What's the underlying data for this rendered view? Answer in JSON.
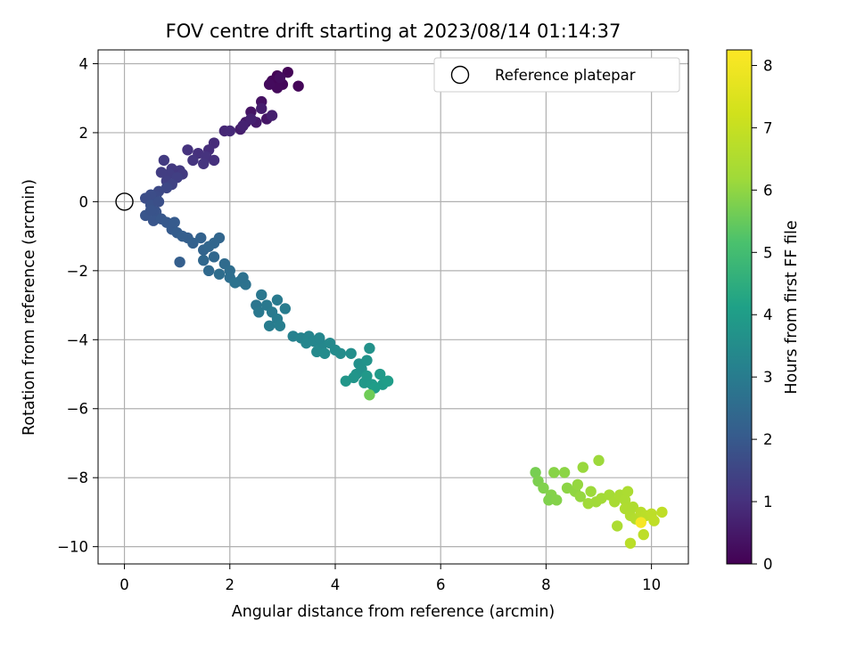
{
  "chart_data": {
    "type": "scatter",
    "title": "FOV centre drift starting at 2023/08/14 01:14:37",
    "xlabel": "Angular distance from reference (arcmin)",
    "ylabel": "Rotation from reference (arcmin)",
    "xlim": [
      -0.5,
      10.7
    ],
    "ylim": [
      -10.5,
      4.4
    ],
    "xticks": [
      "0",
      "2",
      "4",
      "6",
      "8",
      "10"
    ],
    "yticks": [
      "4",
      "2",
      "0",
      "−2",
      "−4",
      "−6",
      "−8",
      "−10"
    ],
    "grid": true,
    "legend_position": "top-right",
    "legend_label": "Reference platepar",
    "reference_point": [
      0,
      0
    ],
    "colorbar": {
      "label": "Hours from first FF file",
      "range": [
        0,
        8.25
      ],
      "ticks": [
        "0",
        "1",
        "2",
        "3",
        "4",
        "5",
        "6",
        "7",
        "8"
      ],
      "colormap": "viridis"
    },
    "points": [
      [
        2.9,
        3.65,
        0.05
      ],
      [
        3.1,
        3.75,
        0.08
      ],
      [
        3.3,
        3.35,
        0.1
      ],
      [
        2.8,
        3.5,
        0.12
      ],
      [
        3.0,
        3.4,
        0.15
      ],
      [
        2.9,
        3.3,
        0.18
      ],
      [
        2.75,
        3.4,
        0.22
      ],
      [
        2.95,
        3.6,
        0.25
      ],
      [
        2.6,
        2.9,
        0.35
      ],
      [
        2.4,
        2.6,
        0.4
      ],
      [
        2.7,
        2.4,
        0.45
      ],
      [
        2.3,
        2.3,
        0.5
      ],
      [
        2.5,
        2.3,
        0.55
      ],
      [
        2.2,
        2.1,
        0.6
      ],
      [
        2.6,
        2.7,
        0.62
      ],
      [
        2.8,
        2.5,
        0.65
      ],
      [
        2.4,
        2.4,
        0.68
      ],
      [
        2.25,
        2.2,
        0.7
      ],
      [
        1.9,
        2.05,
        0.8
      ],
      [
        2.0,
        2.05,
        0.85
      ],
      [
        1.7,
        1.7,
        0.9
      ],
      [
        1.6,
        1.5,
        0.95
      ],
      [
        1.4,
        1.4,
        1.0
      ],
      [
        1.55,
        1.3,
        1.05
      ],
      [
        1.2,
        1.5,
        1.05
      ],
      [
        1.3,
        1.2,
        1.1
      ],
      [
        1.7,
        1.2,
        1.0
      ],
      [
        1.5,
        1.1,
        1.1
      ],
      [
        1.05,
        0.9,
        1.2
      ],
      [
        0.9,
        0.95,
        1.2
      ],
      [
        1.1,
        0.8,
        1.25
      ],
      [
        0.85,
        0.8,
        1.3
      ],
      [
        1.0,
        0.7,
        1.35
      ],
      [
        0.8,
        0.6,
        1.35
      ],
      [
        0.75,
        1.2,
        1.25
      ],
      [
        0.7,
        0.85,
        1.3
      ],
      [
        0.9,
        0.5,
        1.45
      ],
      [
        0.8,
        0.4,
        1.55
      ],
      [
        0.65,
        0.3,
        1.6
      ],
      [
        0.6,
        0.15,
        1.65
      ],
      [
        0.5,
        0.2,
        1.7
      ],
      [
        0.4,
        0.1,
        1.7
      ],
      [
        0.5,
        -0.1,
        1.8
      ],
      [
        0.6,
        -0.3,
        1.85
      ],
      [
        0.4,
        -0.4,
        1.9
      ],
      [
        0.55,
        -0.55,
        1.9
      ],
      [
        0.7,
        -0.5,
        1.95
      ],
      [
        0.5,
        -0.25,
        1.85
      ],
      [
        0.65,
        0.0,
        1.75
      ],
      [
        0.8,
        -0.6,
        2.0
      ],
      [
        0.9,
        -0.8,
        2.05
      ],
      [
        1.0,
        -0.9,
        2.1
      ],
      [
        0.95,
        -0.6,
        2.05
      ],
      [
        1.2,
        -1.05,
        2.15
      ],
      [
        1.3,
        -1.2,
        2.2
      ],
      [
        1.1,
        -1.0,
        2.15
      ],
      [
        1.05,
        -1.75,
        2.15
      ],
      [
        1.45,
        -1.05,
        2.25
      ],
      [
        1.5,
        -1.4,
        2.3
      ],
      [
        1.6,
        -1.3,
        2.35
      ],
      [
        1.5,
        -1.7,
        2.4
      ],
      [
        1.6,
        -2.0,
        2.45
      ],
      [
        1.7,
        -1.6,
        2.4
      ],
      [
        1.8,
        -1.05,
        2.35
      ],
      [
        1.7,
        -1.2,
        2.35
      ],
      [
        1.9,
        -1.8,
        2.5
      ],
      [
        2.0,
        -2.0,
        2.55
      ],
      [
        1.8,
        -2.1,
        2.55
      ],
      [
        2.0,
        -2.2,
        2.6
      ],
      [
        2.2,
        -2.3,
        2.65
      ],
      [
        2.1,
        -2.35,
        2.7
      ],
      [
        2.3,
        -2.4,
        2.7
      ],
      [
        2.25,
        -2.2,
        2.68
      ],
      [
        2.5,
        -3.0,
        2.8
      ],
      [
        2.6,
        -2.7,
        2.85
      ],
      [
        2.7,
        -3.0,
        2.9
      ],
      [
        2.55,
        -3.2,
        2.9
      ],
      [
        2.8,
        -3.2,
        2.95
      ],
      [
        2.9,
        -3.4,
        3.0
      ],
      [
        2.75,
        -3.6,
        3.0
      ],
      [
        2.95,
        -3.6,
        3.05
      ],
      [
        3.05,
        -3.1,
        3.0
      ],
      [
        2.9,
        -2.85,
        2.95
      ],
      [
        3.2,
        -3.9,
        3.15
      ],
      [
        3.35,
        -3.95,
        3.2
      ],
      [
        3.5,
        -3.9,
        3.25
      ],
      [
        3.6,
        -4.05,
        3.3
      ],
      [
        3.45,
        -4.1,
        3.3
      ],
      [
        3.75,
        -4.15,
        3.35
      ],
      [
        3.65,
        -4.35,
        3.4
      ],
      [
        3.8,
        -4.4,
        3.45
      ],
      [
        3.9,
        -4.1,
        3.4
      ],
      [
        4.0,
        -4.3,
        3.45
      ],
      [
        4.1,
        -4.4,
        3.5
      ],
      [
        3.7,
        -3.95,
        3.3
      ],
      [
        4.3,
        -4.4,
        3.55
      ],
      [
        4.45,
        -4.7,
        3.6
      ],
      [
        4.5,
        -4.85,
        3.65
      ],
      [
        4.4,
        -5.0,
        3.7
      ],
      [
        4.6,
        -4.6,
        3.7
      ],
      [
        4.65,
        -4.25,
        3.65
      ],
      [
        4.35,
        -5.1,
        3.75
      ],
      [
        4.2,
        -5.2,
        3.8
      ],
      [
        4.55,
        -5.25,
        3.85
      ],
      [
        4.7,
        -5.3,
        3.9
      ],
      [
        4.9,
        -5.3,
        3.95
      ],
      [
        4.85,
        -5.0,
        3.9
      ],
      [
        5.0,
        -5.2,
        4.0
      ],
      [
        4.75,
        -5.4,
        4.0
      ],
      [
        4.6,
        -5.05,
        3.85
      ],
      [
        4.65,
        -5.6,
        5.6
      ],
      [
        7.8,
        -7.85,
        5.7
      ],
      [
        7.85,
        -8.1,
        5.75
      ],
      [
        7.95,
        -8.3,
        5.8
      ],
      [
        8.1,
        -8.5,
        5.85
      ],
      [
        8.05,
        -8.65,
        5.8
      ],
      [
        8.2,
        -8.65,
        5.85
      ],
      [
        8.15,
        -7.85,
        5.9
      ],
      [
        8.35,
        -7.85,
        5.95
      ],
      [
        8.4,
        -8.3,
        5.95
      ],
      [
        8.55,
        -8.4,
        6.0
      ],
      [
        8.65,
        -8.55,
        6.05
      ],
      [
        8.6,
        -8.2,
        6.05
      ],
      [
        8.7,
        -7.7,
        6.1
      ],
      [
        8.85,
        -8.4,
        6.15
      ],
      [
        8.95,
        -8.7,
        6.2
      ],
      [
        9.05,
        -8.6,
        6.25
      ],
      [
        9.0,
        -7.5,
        6.15
      ],
      [
        8.8,
        -8.75,
        6.2
      ],
      [
        9.2,
        -8.5,
        6.3
      ],
      [
        9.3,
        -8.7,
        6.35
      ],
      [
        9.4,
        -8.5,
        6.4
      ],
      [
        9.5,
        -8.65,
        6.45
      ],
      [
        9.55,
        -8.4,
        6.45
      ],
      [
        9.35,
        -9.4,
        6.45
      ],
      [
        9.5,
        -8.9,
        6.5
      ],
      [
        9.6,
        -9.1,
        6.55
      ],
      [
        9.7,
        -9.2,
        6.6
      ],
      [
        9.65,
        -8.85,
        6.5
      ],
      [
        9.8,
        -9.0,
        6.7
      ],
      [
        9.9,
        -9.1,
        6.75
      ],
      [
        10.0,
        -9.05,
        6.8
      ],
      [
        10.05,
        -9.25,
        6.85
      ],
      [
        10.2,
        -9.0,
        6.85
      ],
      [
        9.85,
        -9.65,
        6.8
      ],
      [
        9.6,
        -9.9,
        6.75
      ],
      [
        9.8,
        -9.3,
        8.1
      ]
    ]
  }
}
